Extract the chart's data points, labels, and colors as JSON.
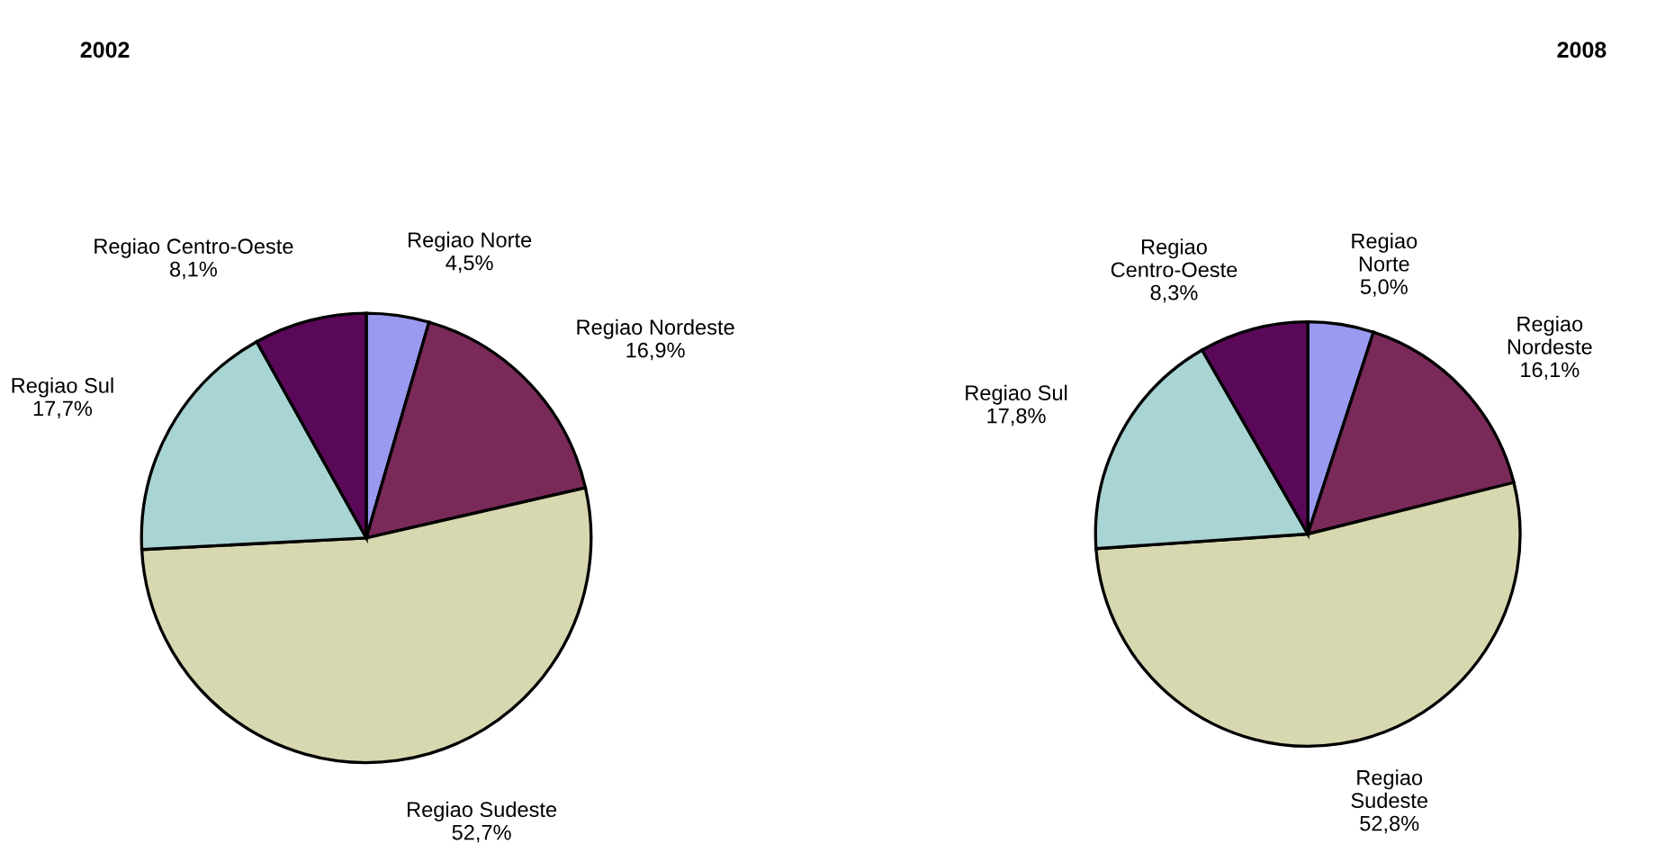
{
  "chart_data": [
    {
      "type": "pie",
      "title": "2002",
      "categories": [
        "Regiao Norte",
        "Regiao Nordeste",
        "Regiao Sudeste",
        "Regiao Sul",
        "Regiao Centro-Oeste"
      ],
      "values": [
        4.5,
        16.9,
        52.7,
        17.7,
        8.1
      ],
      "value_labels": [
        "4,5%",
        "16,9%",
        "52,7%",
        "17,7%",
        "8,1%"
      ],
      "colors": [
        "#9a9af0",
        "#7a2a58",
        "#d8d8b0",
        "#a8d4d4",
        "#5a0858"
      ]
    },
    {
      "type": "pie",
      "title": "2008",
      "categories": [
        "Regiao Norte",
        "Regiao Nordeste",
        "Regiao Sudeste",
        "Regiao Sul",
        "Regiao Centro-Oeste"
      ],
      "values": [
        5.0,
        16.1,
        52.8,
        17.8,
        8.3
      ],
      "value_labels": [
        "5,0%",
        "16,1%",
        "52,8%",
        "17,8%",
        "8,3%"
      ],
      "colors": [
        "#9a9af0",
        "#7a2a58",
        "#d8d8b0",
        "#a8d4d4",
        "#5a0858"
      ]
    }
  ]
}
